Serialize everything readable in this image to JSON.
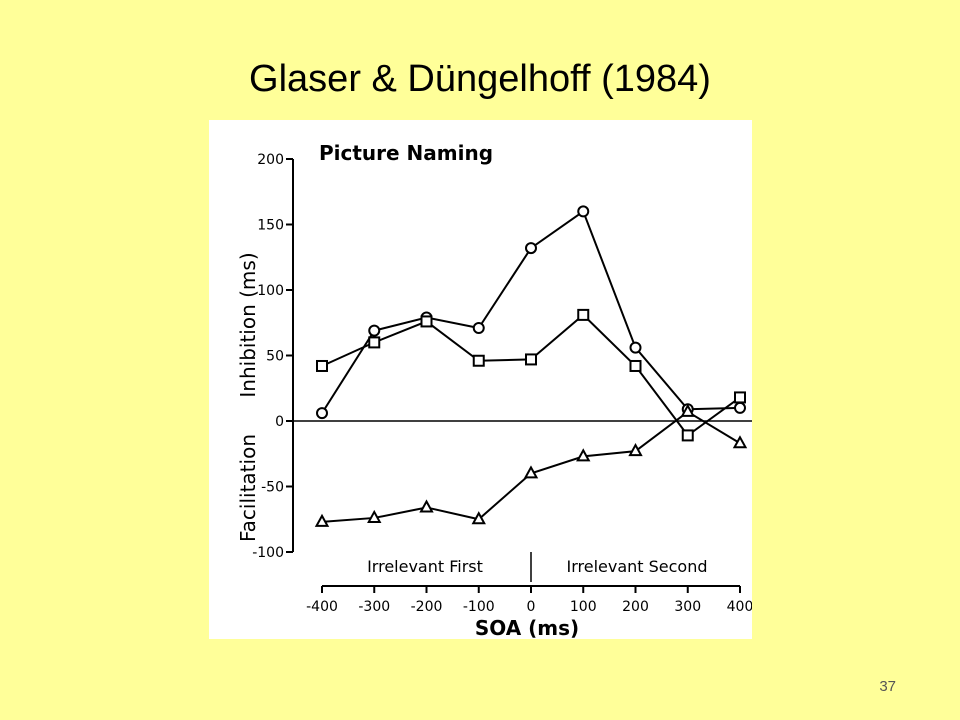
{
  "slide": {
    "title": "Glaser & Düngelhoff (1984)",
    "page_number": "37"
  },
  "colors": {
    "background": "#FFFF99",
    "figure_background": "#FFFFFF",
    "ink": "#000000"
  },
  "chart_data": {
    "type": "line",
    "title": "Picture Naming",
    "xlabel": "SOA (ms)",
    "ylabel_upper": "Inhibition (ms)",
    "ylabel_lower": "Facilitation",
    "x": [
      -400,
      -300,
      -200,
      -100,
      0,
      100,
      200,
      300,
      400
    ],
    "x_tick_labels": [
      "-400",
      "-300",
      "-200",
      "-100",
      "0",
      "100",
      "200",
      "300",
      "400"
    ],
    "y_ticks": [
      200,
      150,
      100,
      50,
      0,
      -50,
      -100
    ],
    "y_tick_labels": [
      "200",
      "150",
      "100",
      "50",
      "0",
      "-50",
      "-100"
    ],
    "xlim": [
      -400,
      400
    ],
    "ylim": [
      -100,
      200
    ],
    "zero_line": true,
    "grid": false,
    "region_labels": [
      "Irrelevant First",
      "Irrelevant Second"
    ],
    "series": [
      {
        "marker": "circle",
        "values": [
          6,
          69,
          79,
          71,
          132,
          160,
          56,
          9,
          10
        ]
      },
      {
        "marker": "square",
        "values": [
          42,
          60,
          76,
          46,
          47,
          81,
          42,
          -11,
          18
        ]
      },
      {
        "marker": "triangle",
        "values": [
          -77,
          -74,
          -66,
          -75,
          -40,
          -27,
          -23,
          7,
          -17
        ]
      }
    ]
  }
}
